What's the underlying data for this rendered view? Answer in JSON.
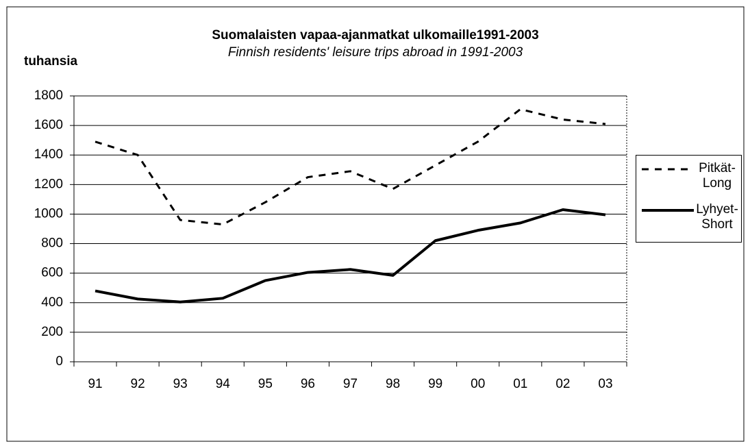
{
  "chart_data": {
    "type": "line",
    "title": "Suomalaisten vapaa-ajanmatkat  ulkomaille1991-2003",
    "subtitle": "Finnish residents' leisure trips abroad in 1991-2003",
    "y_label": "tuhansia",
    "categories": [
      "91",
      "92",
      "93",
      "94",
      "95",
      "96",
      "97",
      "98",
      "99",
      "00",
      "01",
      "02",
      "03"
    ],
    "series": [
      {
        "name": "Pitkät-Long",
        "color": "#000000",
        "dash": true,
        "values": [
          1490,
          1400,
          960,
          930,
          1080,
          1250,
          1290,
          1170,
          1330,
          1490,
          1710,
          1640,
          1610
        ]
      },
      {
        "name": "Lyhyet-Short",
        "color": "#000000",
        "dash": false,
        "values": [
          480,
          425,
          405,
          430,
          550,
          605,
          625,
          585,
          820,
          890,
          940,
          1030,
          995
        ]
      }
    ],
    "ylim": [
      0,
      1800
    ],
    "yticks": [
      0,
      200,
      400,
      600,
      800,
      1000,
      1200,
      1400,
      1600,
      1800
    ],
    "grid": true,
    "legend": "right"
  }
}
